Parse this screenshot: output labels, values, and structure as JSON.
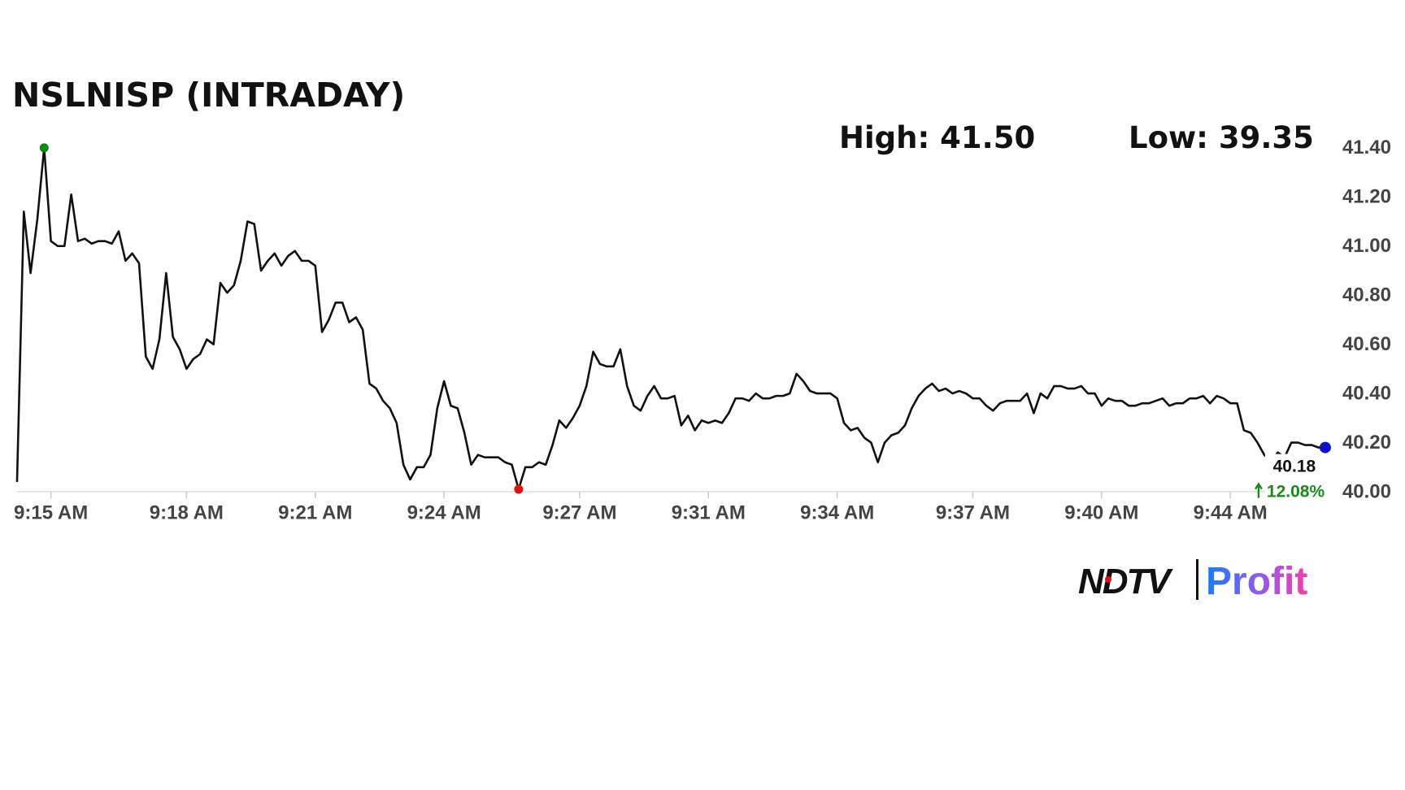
{
  "chart_data": {
    "type": "line",
    "title": "NSLNISP (INTRADAY)",
    "high_label": "High: 41.50",
    "low_label": "Low: 39.35",
    "change_label": "12.08%",
    "color": "#111111",
    "high_color": "#0a8a0a",
    "low_color": "#e01010",
    "last_color": "#1010c8",
    "change_color": "#1a8a1a",
    "ylim": [
      40.0,
      41.4
    ],
    "yticks": [
      {
        "value": 40.0,
        "label": "40.00"
      },
      {
        "value": 40.2,
        "label": "40.20"
      },
      {
        "value": 40.4,
        "label": "40.40"
      },
      {
        "value": 40.6,
        "label": "40.60"
      },
      {
        "value": 40.8,
        "label": "40.80"
      },
      {
        "value": 41.0,
        "label": "41.00"
      },
      {
        "value": 41.2,
        "label": "41.20"
      },
      {
        "value": 41.4,
        "label": "41.40"
      }
    ],
    "categories": [
      null,
      null,
      null,
      null,
      null,
      "9:15 AM",
      null,
      null,
      null,
      null,
      null,
      null,
      null,
      null,
      null,
      null,
      null,
      null,
      null,
      null,
      null,
      null,
      null,
      null,
      null,
      "9:18 AM",
      null,
      null,
      null,
      null,
      null,
      null,
      null,
      null,
      null,
      null,
      null,
      null,
      null,
      null,
      null,
      null,
      null,
      null,
      "9:21 AM",
      null,
      null,
      null,
      null,
      null,
      null,
      null,
      null,
      null,
      null,
      null,
      null,
      null,
      null,
      null,
      null,
      null,
      null,
      "9:24 AM",
      null,
      null,
      null,
      null,
      null,
      null,
      null,
      null,
      null,
      null,
      null,
      null,
      null,
      null,
      null,
      null,
      null,
      null,
      null,
      "9:27 AM",
      null,
      null,
      null,
      null,
      null,
      null,
      null,
      null,
      null,
      null,
      null,
      null,
      null,
      null,
      null,
      null,
      null,
      null,
      "9:31 AM",
      null,
      null,
      null,
      null,
      null,
      null,
      null,
      null,
      null,
      null,
      null,
      null,
      null,
      null,
      null,
      null,
      null,
      null,
      "9:34 AM",
      null,
      null,
      null,
      null,
      null,
      null,
      null,
      null,
      null,
      null,
      null,
      null,
      null,
      null,
      null,
      null,
      null,
      null,
      null,
      "9:37 AM",
      null,
      null,
      null,
      null,
      null,
      null,
      null,
      null,
      null,
      null,
      null,
      null,
      null,
      null,
      null,
      null,
      null,
      null,
      "9:40 AM",
      null,
      null,
      null,
      null,
      null,
      null,
      null,
      null,
      null,
      null,
      null,
      null,
      null,
      null,
      null,
      null,
      null,
      null,
      "9:44 AM",
      null,
      null,
      null,
      null,
      null,
      null,
      null,
      null,
      null,
      null,
      null,
      null,
      null,
      null
    ],
    "values": [
      40.04,
      41.14,
      40.89,
      41.11,
      41.4,
      41.02,
      41.0,
      41.0,
      41.21,
      41.02,
      41.03,
      41.01,
      41.02,
      41.02,
      41.01,
      41.06,
      40.94,
      40.97,
      40.93,
      40.55,
      40.5,
      40.62,
      40.89,
      40.63,
      40.58,
      40.5,
      40.54,
      40.56,
      40.62,
      40.6,
      40.85,
      40.81,
      40.84,
      40.94,
      41.1,
      41.09,
      40.9,
      40.94,
      40.97,
      40.92,
      40.96,
      40.98,
      40.94,
      40.94,
      40.92,
      40.65,
      40.7,
      40.77,
      40.77,
      40.69,
      40.71,
      40.66,
      40.44,
      40.42,
      40.37,
      40.34,
      40.28,
      40.11,
      40.05,
      40.1,
      40.1,
      40.15,
      40.34,
      40.45,
      40.35,
      40.34,
      40.24,
      40.11,
      40.15,
      40.14,
      40.14,
      40.14,
      40.12,
      40.11,
      40.01,
      40.1,
      40.1,
      40.12,
      40.11,
      40.19,
      40.29,
      40.26,
      40.3,
      40.35,
      40.43,
      40.57,
      40.52,
      40.51,
      40.51,
      40.58,
      40.43,
      40.35,
      40.33,
      40.39,
      40.43,
      40.38,
      40.38,
      40.39,
      40.27,
      40.31,
      40.25,
      40.29,
      40.28,
      40.29,
      40.28,
      40.32,
      40.38,
      40.38,
      40.37,
      40.4,
      40.38,
      40.38,
      40.39,
      40.39,
      40.4,
      40.48,
      40.45,
      40.41,
      40.4,
      40.4,
      40.4,
      40.38,
      40.28,
      40.25,
      40.26,
      40.22,
      40.2,
      40.12,
      40.2,
      40.23,
      40.24,
      40.27,
      40.34,
      40.39,
      40.42,
      40.44,
      40.41,
      40.42,
      40.4,
      40.41,
      40.4,
      40.38,
      40.38,
      40.35,
      40.33,
      40.36,
      40.37,
      40.37,
      40.37,
      40.4,
      40.32,
      40.4,
      40.38,
      40.43,
      40.43,
      40.42,
      40.42,
      40.43,
      40.4,
      40.4,
      40.35,
      40.38,
      40.37,
      40.37,
      40.35,
      40.35,
      40.36,
      40.36,
      40.37,
      40.38,
      40.35,
      40.36,
      40.36,
      40.38,
      40.38,
      40.39,
      40.36,
      40.39,
      40.38,
      40.36,
      40.36,
      40.25,
      40.24,
      40.2,
      40.15,
      40.12,
      40.16,
      40.14,
      40.2,
      40.2,
      40.19,
      40.19,
      40.18,
      40.18
    ]
  },
  "logo": {
    "left": "NDTV",
    "right": "Profit"
  }
}
